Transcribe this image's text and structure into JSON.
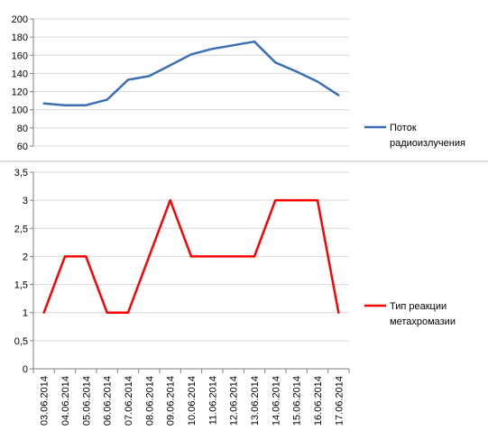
{
  "chart_data": [
    {
      "type": "line",
      "categories": [
        "03.06.2014",
        "04.06.2014",
        "05.06.2014",
        "06.06.2014",
        "07.06.2014",
        "08.06.2014",
        "09.06.2014",
        "10.06.2014",
        "11.06.2014",
        "12.06.2014",
        "13.06.2014",
        "14.06.2014",
        "15.06.2014",
        "16.06.2014",
        "17.06.2014"
      ],
      "series": [
        {
          "name": "Поток радиоизлучения",
          "color": "#3d6eb4",
          "values": [
            107,
            105,
            105,
            111,
            133,
            137,
            149,
            161,
            167,
            171,
            175,
            152,
            142,
            131,
            116
          ]
        }
      ],
      "ylim": [
        60,
        200
      ],
      "yticks": [
        "60",
        "80",
        "100",
        "120",
        "140",
        "160",
        "180",
        "200"
      ],
      "legend_lines": [
        "Поток",
        "радиоизлучения"
      ],
      "legend_position": "right",
      "grid": true
    },
    {
      "type": "line",
      "categories": [
        "03.06.2014",
        "04.06.2014",
        "05.06.2014",
        "06.06.2014",
        "07.06.2014",
        "08.06.2014",
        "09.06.2014",
        "10.06.2014",
        "11.06.2014",
        "12.06.2014",
        "13.06.2014",
        "14.06.2014",
        "15.06.2014",
        "16.06.2014",
        "17.06.2014"
      ],
      "series": [
        {
          "name": "Тип реакции метахромазии",
          "color": "#ff0000",
          "values": [
            1,
            2,
            2,
            1,
            1,
            2,
            3,
            2,
            2,
            2,
            2,
            3,
            3,
            3,
            1
          ]
        }
      ],
      "ylim": [
        0,
        3.5
      ],
      "yticks": [
        "0",
        "0,5",
        "1",
        "1,5",
        "2",
        "2,5",
        "3",
        "3,5"
      ],
      "legend_lines": [
        "Тип реакции",
        "метахромазии"
      ],
      "legend_position": "right",
      "grid": true
    }
  ]
}
